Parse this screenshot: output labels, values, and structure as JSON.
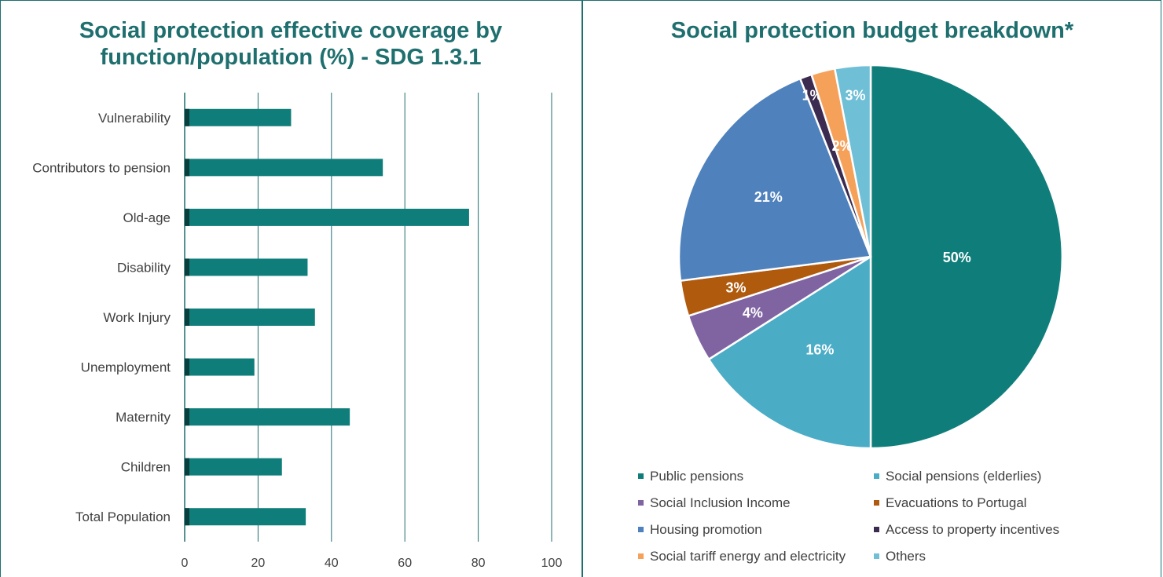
{
  "colors": {
    "frame": "#1f6f6f",
    "bar": "#0f7e7b",
    "title": "#1f6f6f",
    "grid": "#1f6f6f",
    "label": "#404040"
  },
  "chart_data": [
    {
      "type": "bar",
      "orientation": "horizontal",
      "title": "Social protection effective coverage by function/population (%) - SDG 1.3.1",
      "categories": [
        "Vulnerability",
        "Contributors to pension",
        "Old-age",
        "Disability",
        "Work Injury",
        "Unemployment",
        "Maternity",
        "Children",
        "Total Population"
      ],
      "values": [
        29,
        54,
        77.5,
        33.5,
        35.5,
        19,
        45,
        26.5,
        33
      ],
      "xlim": [
        0,
        100
      ],
      "xticks": [
        0,
        20,
        40,
        60,
        80,
        100
      ],
      "grid": true,
      "legend": "none"
    },
    {
      "type": "pie",
      "title": "Social protection budget breakdown*",
      "labels": [
        "Public pensions",
        "Social pensions (elderlies)",
        "Social Inclusion Income",
        "Evacuations to Portugal",
        "Housing promotion",
        "Access to property incentives",
        "Social tariff energy and electricity",
        "Others"
      ],
      "values": [
        50,
        16,
        4,
        3,
        21,
        1,
        2,
        3
      ],
      "data_labels": [
        "50%",
        "16%",
        "4%",
        "3%",
        "21%",
        "1%",
        "2%",
        "3%"
      ],
      "colors": [
        "#0f7e7b",
        "#4bacc6",
        "#8064a2",
        "#b05a0e",
        "#4f81bd",
        "#3b2b50",
        "#f6a15a",
        "#6fbfd6"
      ],
      "legend": "bottom"
    }
  ]
}
